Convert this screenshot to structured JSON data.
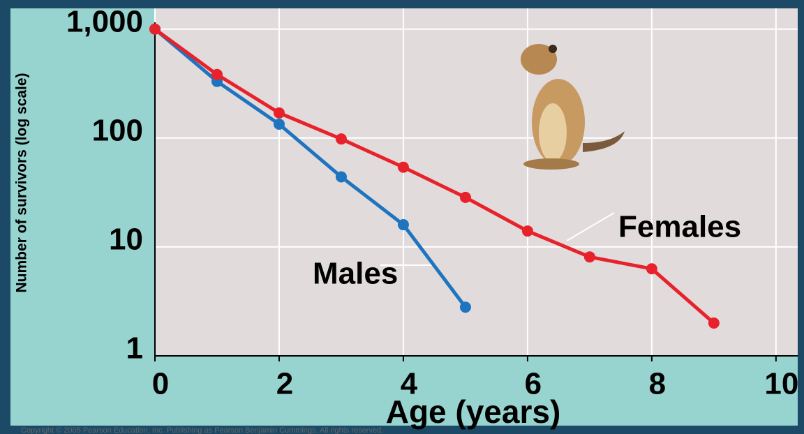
{
  "chart_data": {
    "type": "line",
    "y_label": "Number of survivors (log scale)",
    "x_label": "Age (years)",
    "footer": "Copyright © 2005 Pearson Education, Inc. Publishing as Pearson Benjamin Cummings. All rights reserved.",
    "log_y": true,
    "grid": true,
    "xlim": [
      0,
      10.35
    ],
    "ylim": [
      1,
      1550
    ],
    "xticks": [
      0,
      2,
      4,
      6,
      8,
      10
    ],
    "yticks": [
      1,
      10,
      100,
      {
        "value": 1000,
        "label": "1,000"
      }
    ],
    "series": [
      {
        "name": "Males",
        "color": "#1f74bf",
        "x": [
          0,
          1,
          2,
          3,
          4,
          5
        ],
        "values": [
          1000,
          331,
          134,
          44,
          16,
          2.8
        ]
      },
      {
        "name": "Females",
        "color": "#e8222b",
        "x": [
          0,
          1,
          2,
          3,
          4,
          5,
          6,
          7,
          8,
          9
        ],
        "values": [
          1000,
          383,
          170,
          98,
          54,
          28.5,
          14,
          8.1,
          6.3,
          2
        ]
      }
    ]
  }
}
